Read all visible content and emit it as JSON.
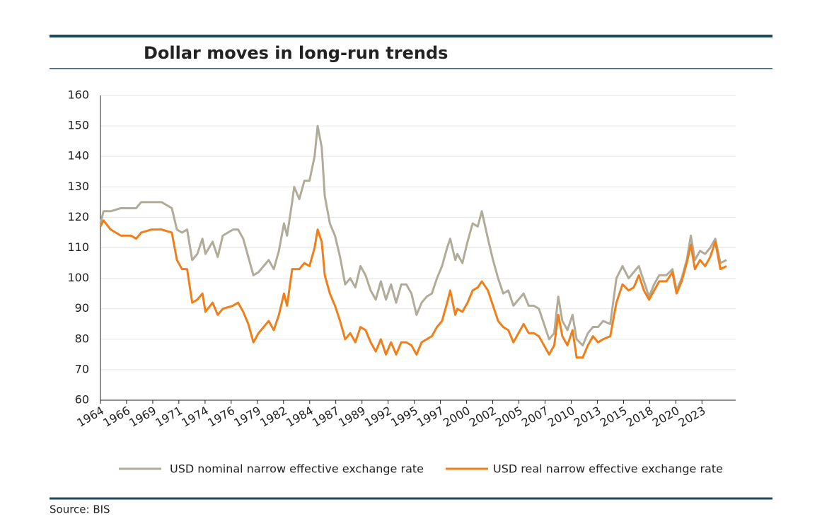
{
  "chart_data": {
    "type": "line",
    "title": "Dollar moves in long-run trends",
    "source": "Source: BIS",
    "x": [
      1964,
      1964.3,
      1965,
      1966,
      1967,
      1967.5,
      1968,
      1969,
      1970,
      1971,
      1971.5,
      1972,
      1972.5,
      1973,
      1973.5,
      1974,
      1974.3,
      1975,
      1975.5,
      1976,
      1977,
      1977.5,
      1978,
      1978.5,
      1979,
      1979.5,
      1980,
      1980.5,
      1981,
      1981.5,
      1982,
      1982.3,
      1982.8,
      1983,
      1983.5,
      1984,
      1984.5,
      1985,
      1985.3,
      1985.7,
      1986,
      1986.5,
      1987,
      1987.5,
      1988,
      1988.5,
      1989,
      1989.5,
      1990,
      1990.5,
      1991,
      1991.5,
      1992,
      1992.5,
      1993,
      1993.5,
      1994,
      1994.5,
      1995,
      1995.5,
      1996,
      1996.5,
      1997,
      1997.5,
      1998,
      1998.3,
      1998.8,
      1999,
      1999.5,
      2000,
      2000.5,
      2001,
      2001.4,
      2002,
      2002.5,
      2003,
      2003.5,
      2004,
      2004.5,
      2005,
      2005.5,
      2006,
      2006.5,
      2007,
      2007.5,
      2008,
      2008.5,
      2008.9,
      2009.3,
      2009.8,
      2010.3,
      2010.7,
      2011.3,
      2011.8,
      2012.3,
      2012.8,
      2013.3,
      2014,
      2014.6,
      2015.2,
      2015.8,
      2016.3,
      2016.8,
      2017.3,
      2017.8,
      2018.3,
      2018.8,
      2019.5,
      2020.1,
      2020.5,
      2021,
      2021.5,
      2021.9,
      2022.3,
      2022.8,
      2023.3,
      2023.8,
      2024.3,
      2024.8,
      2025.4
    ],
    "series": [
      {
        "name": "USD nominal narrow effective exchange rate",
        "color": "#b1ab99",
        "values": [
          118,
          122,
          122,
          123,
          123,
          123,
          125,
          125,
          125,
          123,
          116,
          115,
          116,
          106,
          108,
          113,
          108,
          112,
          107,
          114,
          116,
          116,
          113,
          107,
          101,
          102,
          104,
          106,
          103,
          109,
          118,
          114,
          125,
          130,
          126,
          132,
          132,
          140,
          150,
          143,
          127,
          118,
          114,
          107,
          98,
          100,
          97,
          104,
          101,
          96,
          93,
          99,
          93,
          98,
          92,
          98,
          98,
          95,
          88,
          92,
          94,
          95,
          100,
          104,
          110,
          113,
          106,
          108,
          105,
          112,
          118,
          117,
          122,
          113,
          106,
          100,
          95,
          96,
          91,
          93,
          95,
          91,
          91,
          90,
          85,
          80,
          82,
          94,
          86,
          83,
          88,
          80,
          78,
          82,
          84,
          84,
          86,
          85,
          100,
          104,
          100,
          102,
          104,
          99,
          94,
          98,
          101,
          101,
          103,
          96,
          100,
          106,
          114,
          106,
          109,
          108,
          110,
          113,
          105,
          106
        ]
      },
      {
        "name": "USD real narrow effective exchange rate",
        "color": "#f07f1a",
        "values": [
          117,
          119,
          116,
          114,
          114,
          113,
          115,
          116,
          116,
          115,
          106,
          103,
          103,
          92,
          93,
          95,
          89,
          92,
          88,
          90,
          91,
          92,
          89,
          85,
          79,
          82,
          84,
          86,
          83,
          88,
          95,
          91,
          103,
          103,
          103,
          105,
          104,
          110,
          116,
          112,
          101,
          95,
          91,
          86,
          80,
          82,
          79,
          84,
          83,
          79,
          76,
          80,
          75,
          79,
          75,
          79,
          79,
          78,
          75,
          79,
          80,
          81,
          84,
          86,
          92,
          96,
          88,
          90,
          89,
          92,
          96,
          97,
          99,
          96,
          91,
          86,
          84,
          83,
          79,
          82,
          85,
          82,
          82,
          81,
          78,
          75,
          78,
          88,
          81,
          78,
          83,
          74,
          74,
          78,
          81,
          79,
          80,
          81,
          92,
          98,
          96,
          97,
          101,
          96,
          93,
          96,
          99,
          99,
          102,
          95,
          99,
          105,
          111,
          103,
          106,
          104,
          107,
          112,
          103,
          104
        ]
      }
    ],
    "xlim": [
      1964,
      2026.3
    ],
    "xticks": [
      {
        "value": 1964,
        "label": "1964"
      },
      {
        "value": 1966.56,
        "label": "1966"
      },
      {
        "value": 1969.13,
        "label": "1969"
      },
      {
        "value": 1971.69,
        "label": "1971"
      },
      {
        "value": 1974.26,
        "label": "1974"
      },
      {
        "value": 1976.82,
        "label": "1976"
      },
      {
        "value": 1979.39,
        "label": "1979"
      },
      {
        "value": 1981.95,
        "label": "1982"
      },
      {
        "value": 1984.52,
        "label": "1984"
      },
      {
        "value": 1987.08,
        "label": "1987"
      },
      {
        "value": 1989.65,
        "label": "1989"
      },
      {
        "value": 1992.21,
        "label": "1992"
      },
      {
        "value": 1994.78,
        "label": "1995"
      },
      {
        "value": 1997.34,
        "label": "1997"
      },
      {
        "value": 1999.91,
        "label": "2000"
      },
      {
        "value": 2002.47,
        "label": "2002"
      },
      {
        "value": 2005.04,
        "label": "2005"
      },
      {
        "value": 2007.6,
        "label": "2007"
      },
      {
        "value": 2010.17,
        "label": "2010"
      },
      {
        "value": 2012.73,
        "label": "2013"
      },
      {
        "value": 2015.3,
        "label": "2015"
      },
      {
        "value": 2017.86,
        "label": "2018"
      },
      {
        "value": 2020.43,
        "label": "2020"
      },
      {
        "value": 2022.99,
        "label": "2023"
      }
    ],
    "ylim": [
      60,
      160
    ],
    "yticks": [
      60,
      70,
      80,
      90,
      100,
      110,
      120,
      130,
      140,
      150,
      160
    ],
    "grid": true
  }
}
